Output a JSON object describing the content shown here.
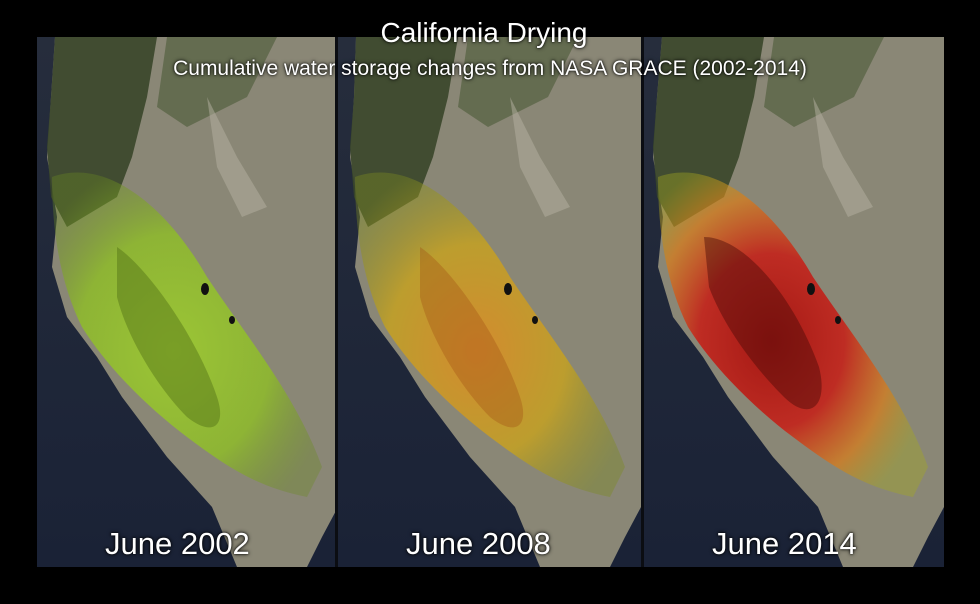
{
  "title": "California Drying",
  "subtitle": "Cumulative water storage changes from NASA GRACE (2002-2014)",
  "panels": [
    {
      "label": "June 2002",
      "tone": "green"
    },
    {
      "label": "June 2008",
      "tone": "orange"
    },
    {
      "label": "June 2014",
      "tone": "red"
    }
  ],
  "colors": {
    "background": "#000000",
    "ocean": "#1c2438",
    "land": "#8b8878",
    "forest": "#3d4a2c",
    "green_overlay": "#8fc31f",
    "yellow_overlay": "#c9c41c",
    "orange_overlay": "#d98a1e",
    "red_overlay": "#c4221a",
    "text": "#ffffff"
  }
}
